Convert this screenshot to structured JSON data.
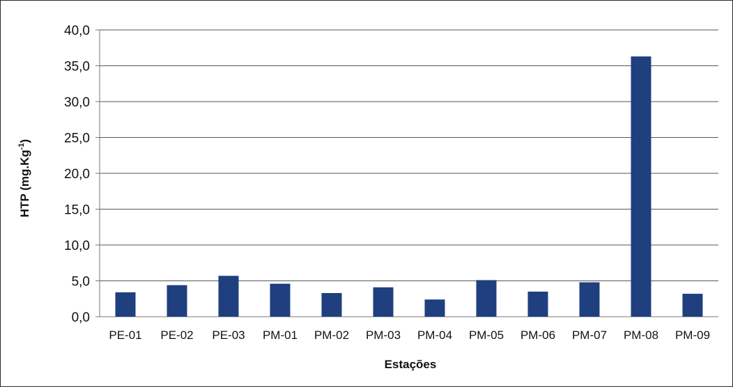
{
  "chart_data": {
    "type": "bar",
    "title": "",
    "xlabel": "Estações",
    "ylabel": "HTP (mg.Kg",
    "ylabel_sup": "-1",
    "ylabel_close": ")",
    "categories": [
      "PE-01",
      "PE-02",
      "PE-03",
      "PM-01",
      "PM-02",
      "PM-03",
      "PM-04",
      "PM-05",
      "PM-06",
      "PM-07",
      "PM-08",
      "PM-09"
    ],
    "values": [
      3.4,
      4.4,
      5.7,
      4.6,
      3.3,
      4.1,
      2.4,
      5.1,
      3.5,
      4.8,
      36.3,
      3.2
    ],
    "ylim": [
      0,
      40
    ],
    "yticks": [
      "0,0",
      "5,0",
      "10,0",
      "15,0",
      "20,0",
      "25,0",
      "30,0",
      "35,0",
      "40,0"
    ],
    "ytick_values": [
      0,
      5,
      10,
      15,
      20,
      25,
      30,
      35,
      40
    ],
    "grid": true,
    "legend": "none",
    "bar_color": "#1f3f7f"
  }
}
